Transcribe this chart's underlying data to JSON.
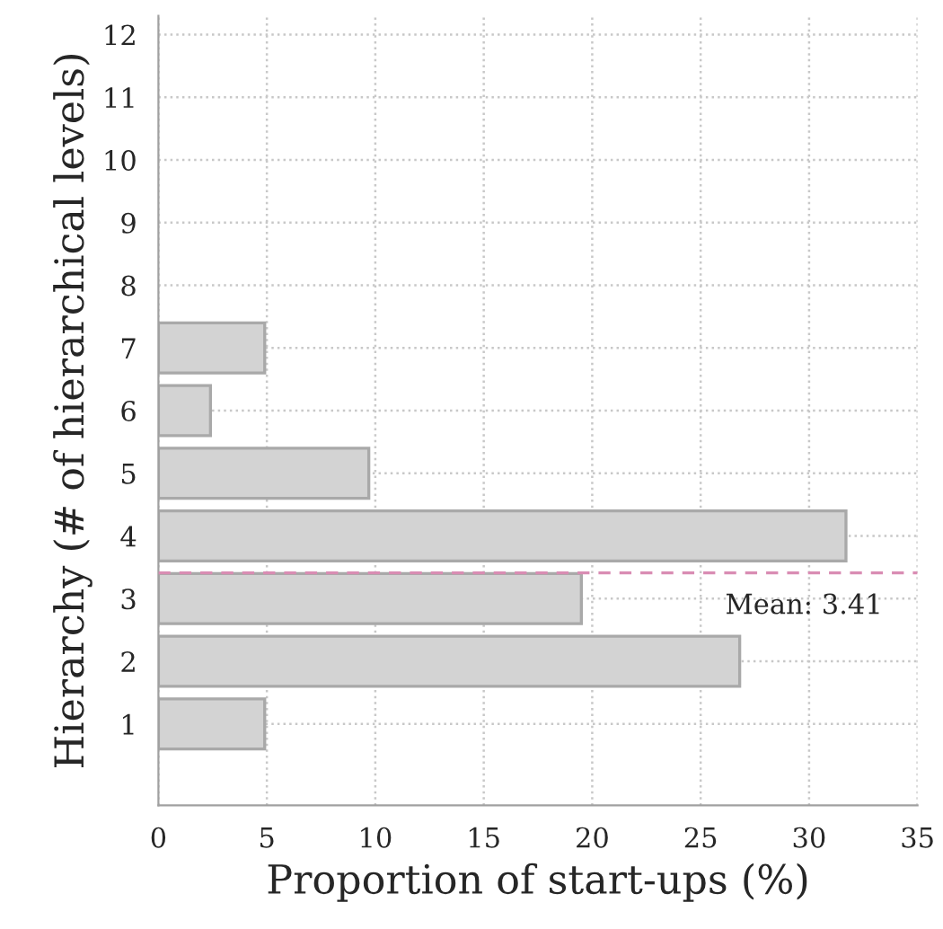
{
  "chart_data": {
    "type": "bar",
    "orientation": "horizontal",
    "xlabel": "Proportion of start-ups (%)",
    "ylabel": "Hierarchy (# of hierarchical levels)",
    "x": [
      1,
      2,
      3,
      4,
      5,
      6,
      7
    ],
    "values": [
      4.9,
      26.8,
      19.5,
      31.7,
      9.7,
      2.4,
      4.9
    ],
    "color": "#d3d3d3",
    "xlim": [
      0,
      35
    ],
    "xticks": [
      0,
      5,
      10,
      15,
      20,
      25,
      30,
      35
    ],
    "ylim": [
      -0.3,
      12.3
    ],
    "yticks": [
      1,
      2,
      3,
      4,
      5,
      6,
      7,
      8,
      9,
      10,
      11,
      12
    ],
    "grid": true,
    "ref_lines": [
      {
        "axis": "y",
        "value": 3.41,
        "label": "Mean: 3.41",
        "color": "#d98cb3",
        "line_style": "dashed"
      }
    ]
  }
}
